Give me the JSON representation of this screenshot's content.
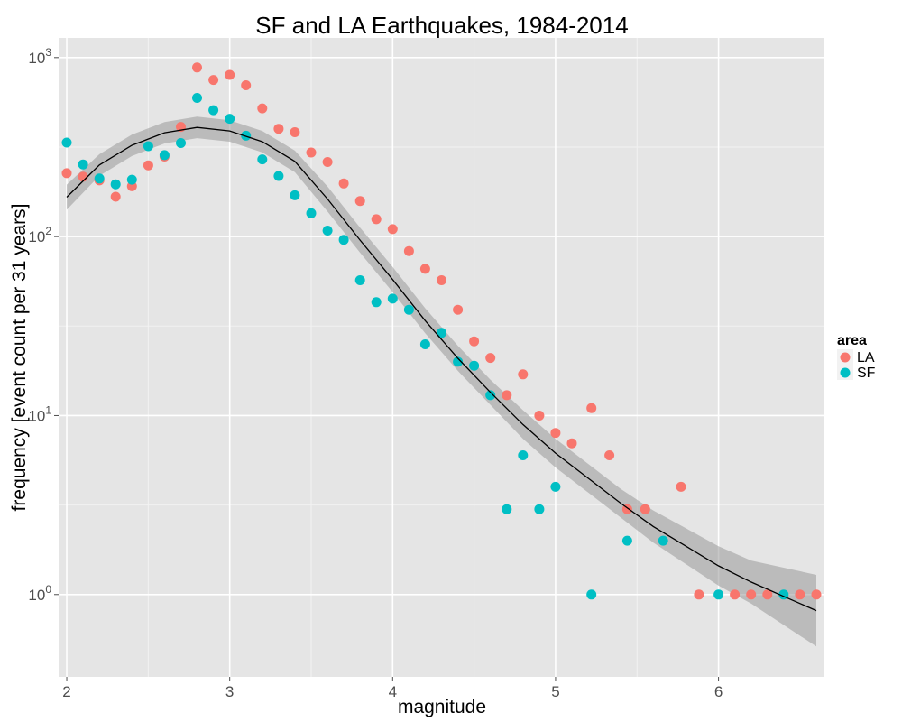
{
  "chart_data": {
    "type": "scatter",
    "title": "SF and LA Earthquakes, 1984-2014",
    "xlabel": "magnitude",
    "ylabel": "frequency [event count per 31 years]",
    "xlim": [
      1.95,
      6.65
    ],
    "ylim_log10": [
      -0.46,
      0.11
    ],
    "y_scale": "log10",
    "x_ticks": [
      2,
      3,
      4,
      5,
      6
    ],
    "x_tick_labels": [
      "2",
      "3",
      "4",
      "5",
      "6"
    ],
    "y_ticks": [
      1,
      10,
      100,
      1000
    ],
    "y_tick_labels": [
      {
        "base": "10",
        "exp": "0"
      },
      {
        "base": "10",
        "exp": "1"
      },
      {
        "base": "10",
        "exp": "2"
      },
      {
        "base": "10",
        "exp": "3"
      }
    ],
    "legend": {
      "title": "area",
      "position": "right",
      "entries": [
        {
          "label": "LA",
          "color": "#F8766D"
        },
        {
          "label": "SF",
          "color": "#00BFC4"
        }
      ]
    },
    "series": [
      {
        "name": "LA",
        "color": "#F8766D",
        "points": [
          [
            2.0,
            226
          ],
          [
            2.1,
            216
          ],
          [
            2.2,
            206
          ],
          [
            2.3,
            167
          ],
          [
            2.4,
            191
          ],
          [
            2.5,
            250
          ],
          [
            2.6,
            280
          ],
          [
            2.7,
            410
          ],
          [
            2.8,
            880
          ],
          [
            2.9,
            750
          ],
          [
            3.0,
            800
          ],
          [
            3.1,
            700
          ],
          [
            3.2,
            520
          ],
          [
            3.3,
            400
          ],
          [
            3.4,
            383
          ],
          [
            3.5,
            295
          ],
          [
            3.6,
            261
          ],
          [
            3.7,
            198
          ],
          [
            3.8,
            158
          ],
          [
            3.9,
            125
          ],
          [
            4.0,
            110
          ],
          [
            4.1,
            83
          ],
          [
            4.2,
            66
          ],
          [
            4.3,
            57
          ],
          [
            4.4,
            39
          ],
          [
            4.5,
            26
          ],
          [
            4.6,
            21
          ],
          [
            4.7,
            13
          ],
          [
            4.8,
            17
          ],
          [
            4.9,
            10
          ],
          [
            5.0,
            8
          ],
          [
            5.1,
            7
          ],
          [
            5.22,
            11
          ],
          [
            5.33,
            6
          ],
          [
            5.44,
            3
          ],
          [
            5.55,
            3
          ],
          [
            5.77,
            4
          ],
          [
            5.88,
            1
          ],
          [
            6.1,
            1
          ],
          [
            6.2,
            1
          ],
          [
            6.3,
            1
          ],
          [
            6.5,
            1
          ],
          [
            6.6,
            1
          ]
        ]
      },
      {
        "name": "SF",
        "color": "#00BFC4",
        "points": [
          [
            2.0,
            335
          ],
          [
            2.1,
            253
          ],
          [
            2.2,
            211
          ],
          [
            2.3,
            196
          ],
          [
            2.4,
            208
          ],
          [
            2.5,
            320
          ],
          [
            2.6,
            285
          ],
          [
            2.7,
            333
          ],
          [
            2.8,
            595
          ],
          [
            2.9,
            508
          ],
          [
            3.0,
            455
          ],
          [
            3.1,
            366
          ],
          [
            3.2,
            270
          ],
          [
            3.3,
            218
          ],
          [
            3.4,
            170
          ],
          [
            3.5,
            135
          ],
          [
            3.6,
            108
          ],
          [
            3.7,
            96
          ],
          [
            3.8,
            57
          ],
          [
            3.9,
            43
          ],
          [
            4.0,
            45
          ],
          [
            4.1,
            39
          ],
          [
            4.2,
            25
          ],
          [
            4.3,
            29
          ],
          [
            4.4,
            20
          ],
          [
            4.5,
            19
          ],
          [
            4.6,
            13
          ],
          [
            4.7,
            3
          ],
          [
            4.8,
            6
          ],
          [
            4.9,
            3
          ],
          [
            5.0,
            4
          ],
          [
            5.22,
            1
          ],
          [
            5.44,
            2
          ],
          [
            5.66,
            2
          ],
          [
            6.0,
            1
          ],
          [
            6.4,
            1
          ]
        ]
      }
    ],
    "smooth": {
      "color": "#000000",
      "band_color": "#999999",
      "points": [
        [
          2.0,
          2.22,
          0.07
        ],
        [
          2.2,
          2.4,
          0.06
        ],
        [
          2.4,
          2.51,
          0.06
        ],
        [
          2.6,
          2.58,
          0.06
        ],
        [
          2.8,
          2.61,
          0.06
        ],
        [
          3.0,
          2.59,
          0.06
        ],
        [
          3.2,
          2.53,
          0.06
        ],
        [
          3.4,
          2.42,
          0.06
        ],
        [
          3.6,
          2.21,
          0.07
        ],
        [
          3.8,
          1.98,
          0.07
        ],
        [
          4.0,
          1.76,
          0.07
        ],
        [
          4.2,
          1.53,
          0.07
        ],
        [
          4.4,
          1.32,
          0.07
        ],
        [
          4.6,
          1.13,
          0.07
        ],
        [
          4.8,
          0.95,
          0.08
        ],
        [
          5.0,
          0.79,
          0.08
        ],
        [
          5.2,
          0.65,
          0.08
        ],
        [
          5.4,
          0.51,
          0.08
        ],
        [
          5.6,
          0.38,
          0.09
        ],
        [
          5.8,
          0.27,
          0.1
        ],
        [
          6.0,
          0.16,
          0.11
        ],
        [
          6.2,
          0.07,
          0.12
        ],
        [
          6.4,
          -0.01,
          0.16
        ],
        [
          6.6,
          -0.09,
          0.2
        ]
      ]
    }
  }
}
